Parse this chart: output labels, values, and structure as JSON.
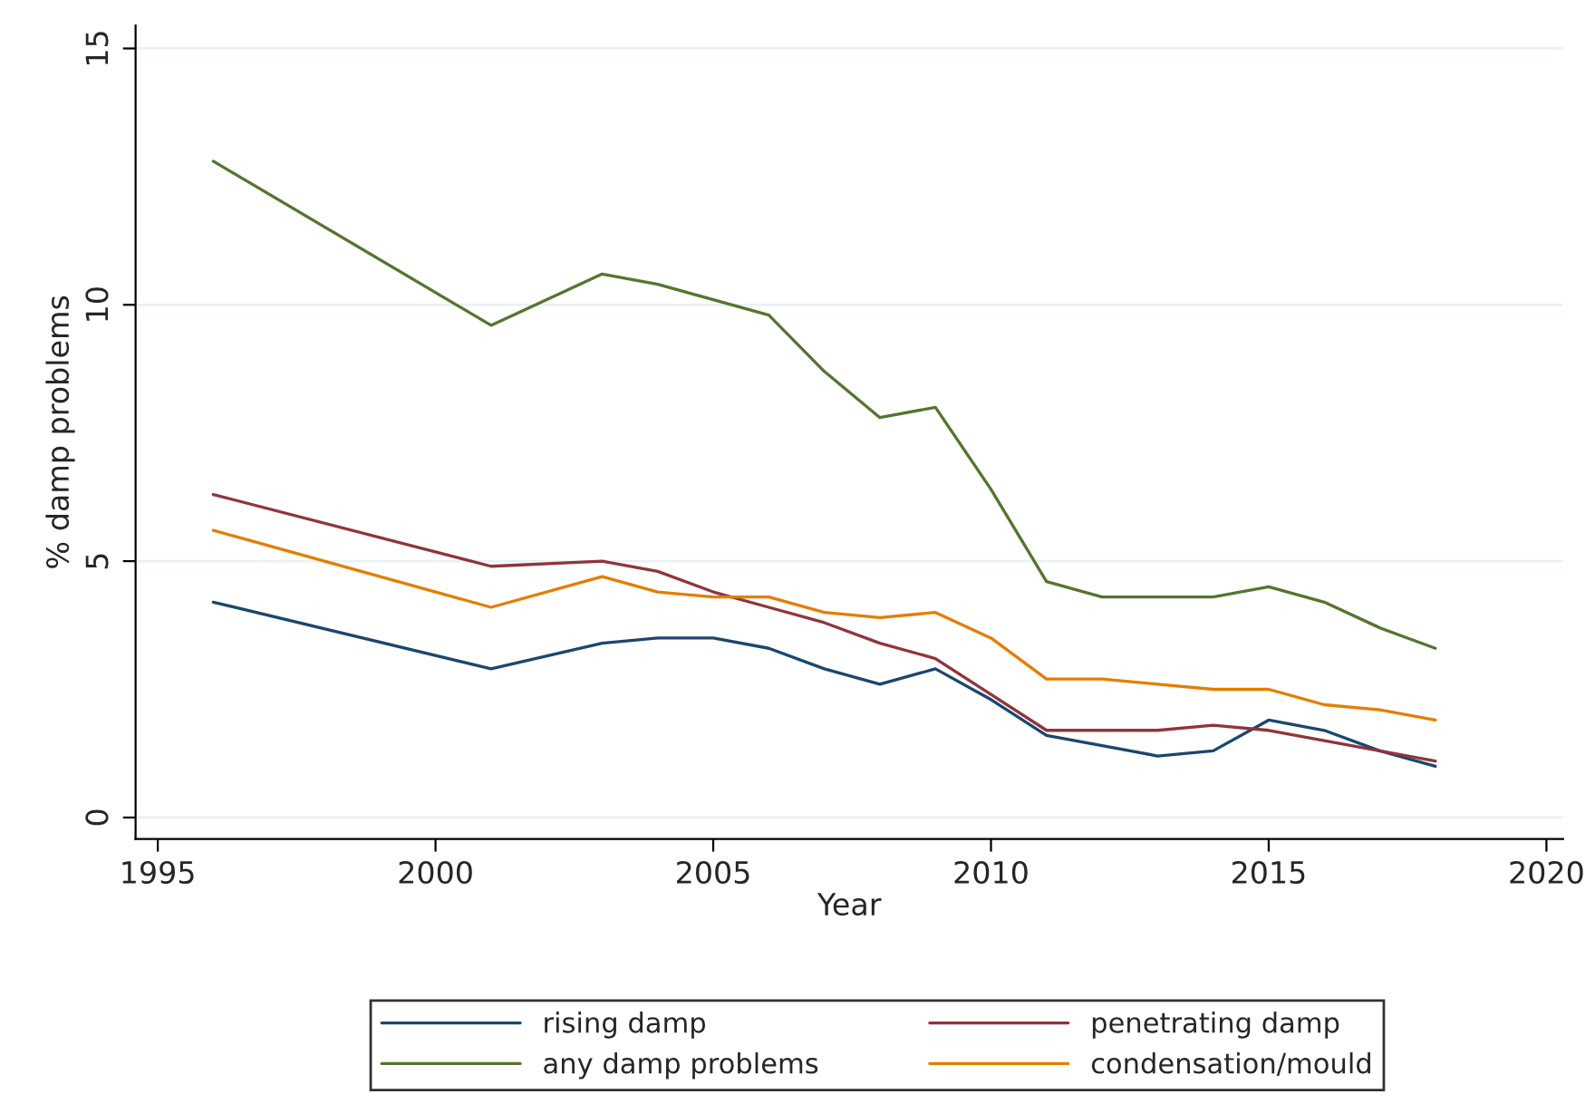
{
  "chart_data": {
    "type": "line",
    "xlabel": "Year",
    "ylabel": "% damp problems",
    "x": [
      1996,
      2001,
      2003,
      2004,
      2005,
      2006,
      2007,
      2008,
      2009,
      2010,
      2011,
      2012,
      2013,
      2014,
      2015,
      2016,
      2017,
      2018
    ],
    "series": [
      {
        "name": "rising damp",
        "color": "#1a476f",
        "values": [
          4.2,
          2.9,
          3.4,
          3.5,
          3.5,
          3.3,
          2.9,
          2.6,
          2.9,
          2.3,
          1.6,
          1.4,
          1.2,
          1.3,
          1.9,
          1.7,
          1.3,
          1.0
        ]
      },
      {
        "name": "penetrating damp",
        "color": "#90353b",
        "values": [
          6.3,
          4.9,
          5.0,
          4.8,
          4.4,
          4.1,
          3.8,
          3.4,
          3.1,
          2.4,
          1.7,
          1.7,
          1.7,
          1.8,
          1.7,
          1.5,
          1.3,
          1.1
        ]
      },
      {
        "name": "any damp problems",
        "color": "#55752f",
        "values": [
          12.8,
          9.6,
          10.6,
          10.4,
          10.1,
          9.8,
          8.7,
          7.8,
          8.0,
          6.4,
          4.6,
          4.3,
          4.3,
          4.3,
          4.5,
          4.2,
          3.7,
          3.3
        ]
      },
      {
        "name": "condensation/mould",
        "color": "#e37e00",
        "values": [
          5.6,
          4.1,
          4.7,
          4.4,
          4.3,
          4.3,
          4.0,
          3.9,
          4.0,
          3.5,
          2.7,
          2.7,
          2.6,
          2.5,
          2.5,
          2.2,
          2.1,
          1.9
        ]
      }
    ],
    "xlim": [
      1994.6,
      2020.3
    ],
    "ylim": [
      -0.42,
      15.45
    ],
    "xticks": [
      1995,
      2000,
      2005,
      2010,
      2015,
      2020
    ],
    "yticks": [
      0,
      5,
      10,
      15
    ],
    "grid": "y",
    "legend": "bottom",
    "marker": "none",
    "line_style": "solid"
  }
}
